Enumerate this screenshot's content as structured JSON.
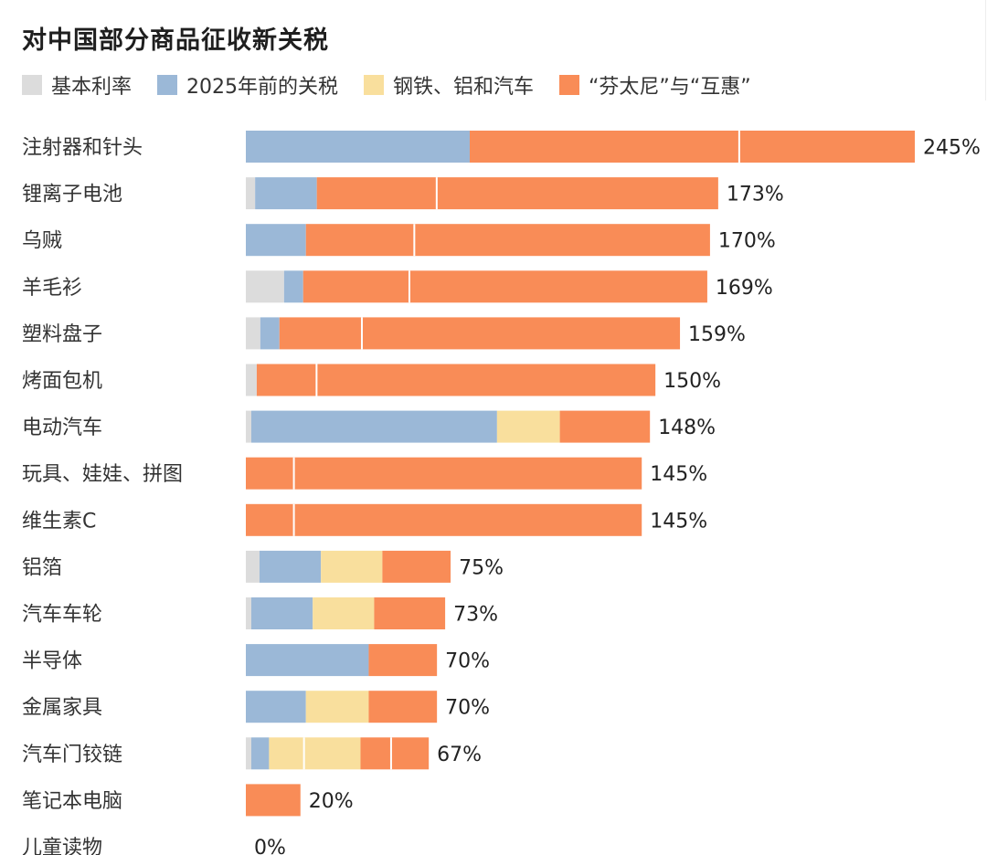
{
  "chart_data": {
    "type": "bar",
    "orientation": "horizontal",
    "stacked": true,
    "title": "对中国部分商品征收新关税",
    "categories": [
      "注射器和针头",
      "锂离子电池",
      "乌贼",
      "羊毛衫",
      "塑料盘子",
      "烤面包机",
      "电动汽车",
      "玩具、娃娃、拼图",
      "维生素C",
      "铝箔",
      "汽车车轮",
      "半导体",
      "金属家具",
      "汽车门铰链",
      "笔记本电脑",
      "儿童读物"
    ],
    "series": [
      {
        "name": "基本利率",
        "color": "#dcdcdc",
        "values": [
          0,
          3.4,
          0,
          14,
          5.3,
          4,
          2,
          0,
          0,
          5,
          2,
          0,
          0,
          2,
          0,
          0
        ]
      },
      {
        "name": "2025年前的关税",
        "color": "#9bb8d7",
        "values": [
          82,
          22.6,
          22,
          7,
          7,
          0,
          90,
          0,
          0,
          22.5,
          22.5,
          45,
          22,
          6.5,
          0,
          0
        ]
      },
      {
        "name": "钢铁、铝和汽车",
        "color": "#f9df9d",
        "values": [
          0,
          0,
          0,
          0,
          0,
          0,
          23,
          0,
          0,
          22.5,
          22.5,
          0,
          23,
          33.5,
          0,
          0
        ]
      },
      {
        "name": "“芬太尼”与“互惠”",
        "color": "#f98c57",
        "values": [
          163,
          147,
          148,
          148,
          146.7,
          146,
          33,
          145,
          145,
          25,
          26,
          25,
          25,
          25,
          20,
          0
        ]
      }
    ],
    "totals": [
      "245%",
      "173%",
      "170%",
      "169%",
      "159%",
      "150%",
      "148%",
      "145%",
      "145%",
      "75%",
      "73%",
      "70%",
      "70%",
      "67%",
      "20%",
      "0%"
    ],
    "divider_offsets": [
      [
        98.7
      ],
      [
        43.9
      ],
      [
        39.7
      ],
      [
        38.9
      ],
      [
        30.2
      ],
      [
        21.9
      ],
      [],
      [
        17.6
      ],
      [
        17.6
      ],
      [],
      [],
      [],
      [],
      [
        11.2
      ],
      [],
      []
    ],
    "xlim": [
      0,
      245
    ],
    "xlabel": "",
    "ylabel": "",
    "legend_position": "top-left",
    "grid": false
  }
}
